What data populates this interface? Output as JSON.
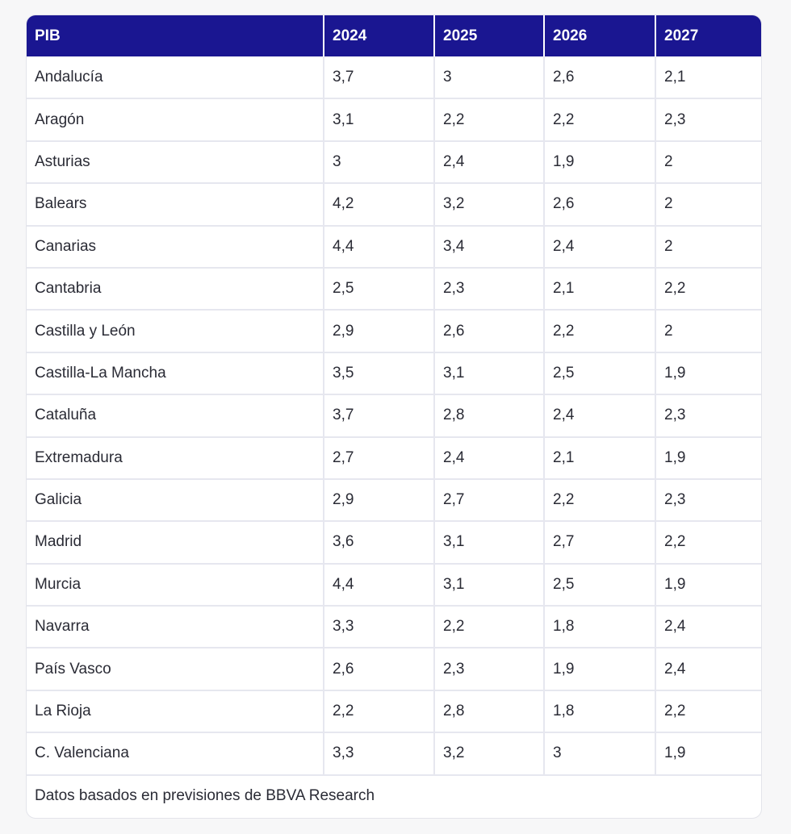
{
  "table": {
    "headers": [
      "PIB",
      "2024",
      "2025",
      "2026",
      "2027"
    ],
    "rows": [
      [
        "Andalucía",
        "3,7",
        "3",
        "2,6",
        "2,1"
      ],
      [
        "Aragón",
        "3,1",
        "2,2",
        "2,2",
        "2,3"
      ],
      [
        "Asturias",
        "3",
        "2,4",
        "1,9",
        "2"
      ],
      [
        "Balears",
        "4,2",
        "3,2",
        "2,6",
        "2"
      ],
      [
        "Canarias",
        "4,4",
        "3,4",
        "2,4",
        "2"
      ],
      [
        "Cantabria",
        "2,5",
        "2,3",
        "2,1",
        "2,2"
      ],
      [
        "Castilla y León",
        "2,9",
        "2,6",
        "2,2",
        "2"
      ],
      [
        "Castilla-La Mancha",
        "3,5",
        "3,1",
        "2,5",
        "1,9"
      ],
      [
        "Cataluña",
        "3,7",
        "2,8",
        "2,4",
        "2,3"
      ],
      [
        "Extremadura",
        "2,7",
        "2,4",
        "2,1",
        "1,9"
      ],
      [
        "Galicia",
        "2,9",
        "2,7",
        "2,2",
        "2,3"
      ],
      [
        "Madrid",
        "3,6",
        "3,1",
        "2,7",
        "2,2"
      ],
      [
        "Murcia",
        "4,4",
        "3,1",
        "2,5",
        "1,9"
      ],
      [
        "Navarra",
        "3,3",
        "2,2",
        "1,8",
        "2,4"
      ],
      [
        "País Vasco",
        "2,6",
        "2,3",
        "1,9",
        "2,4"
      ],
      [
        "La Rioja",
        "2,2",
        "2,8",
        "1,8",
        "2,2"
      ],
      [
        "C. Valenciana",
        "3,3",
        "3,2",
        "3",
        "1,9"
      ]
    ],
    "footnote": "Datos basados en previsiones de BBVA Research"
  },
  "colors": {
    "header_bg": "#1a1691",
    "header_text": "#ffffff",
    "grid": "#e6e7ef"
  }
}
